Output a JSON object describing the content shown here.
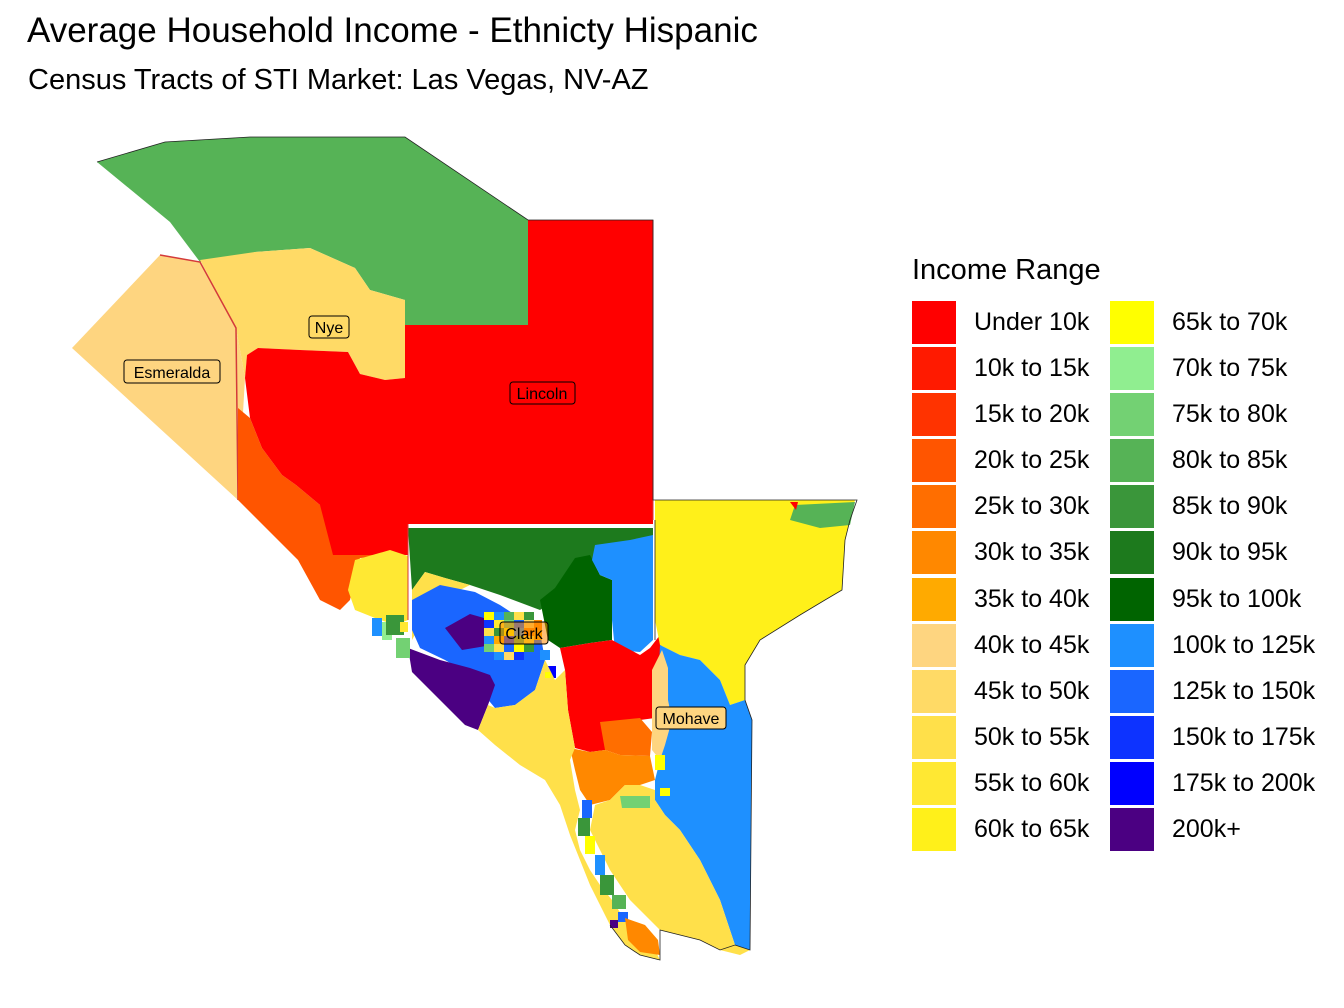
{
  "title": "Average Household Income - Ethnicty Hispanic",
  "subtitle": "Census Tracts of STI Market: Las Vegas, NV-AZ",
  "legend": {
    "title": "Income Range",
    "items": [
      {
        "label": "Under 10k",
        "color": "#FF0000"
      },
      {
        "label": "10k to 15k",
        "color": "#FF1A00"
      },
      {
        "label": "15k to 20k",
        "color": "#FF3300"
      },
      {
        "label": "20k to 25k",
        "color": "#FF5500"
      },
      {
        "label": "25k to 30k",
        "color": "#FF6E00"
      },
      {
        "label": "30k to 35k",
        "color": "#FF8800"
      },
      {
        "label": "35k to 40k",
        "color": "#FFAA00"
      },
      {
        "label": "40k to 45k",
        "color": "#FED580"
      },
      {
        "label": "45k to 50k",
        "color": "#FFDA66"
      },
      {
        "label": "50k to 55k",
        "color": "#FFE04A"
      },
      {
        "label": "55k to 60k",
        "color": "#FFE833"
      },
      {
        "label": "60k to 65k",
        "color": "#FFF01A"
      },
      {
        "label": "65k to 70k",
        "color": "#FFFF00"
      },
      {
        "label": "70k to 75k",
        "color": "#90EE90"
      },
      {
        "label": "75k to 80k",
        "color": "#73D173"
      },
      {
        "label": "80k to 85k",
        "color": "#56B356"
      },
      {
        "label": "85k to 90k",
        "color": "#3A963A"
      },
      {
        "label": "90k to 95k",
        "color": "#1D7A1D"
      },
      {
        "label": "95k to 100k",
        "color": "#006400"
      },
      {
        "label": "100k to 125k",
        "color": "#1E90FF"
      },
      {
        "label": "125k to 150k",
        "color": "#1A66FF"
      },
      {
        "label": "150k to 175k",
        "color": "#0D33FF"
      },
      {
        "label": "175k to 200k",
        "color": "#0000FF"
      },
      {
        "label": "200k+",
        "color": "#4B0082"
      }
    ]
  },
  "map": {
    "county_labels": [
      "Esmeralda",
      "Nye",
      "Lincoln",
      "Clark",
      "Mohave"
    ]
  }
}
